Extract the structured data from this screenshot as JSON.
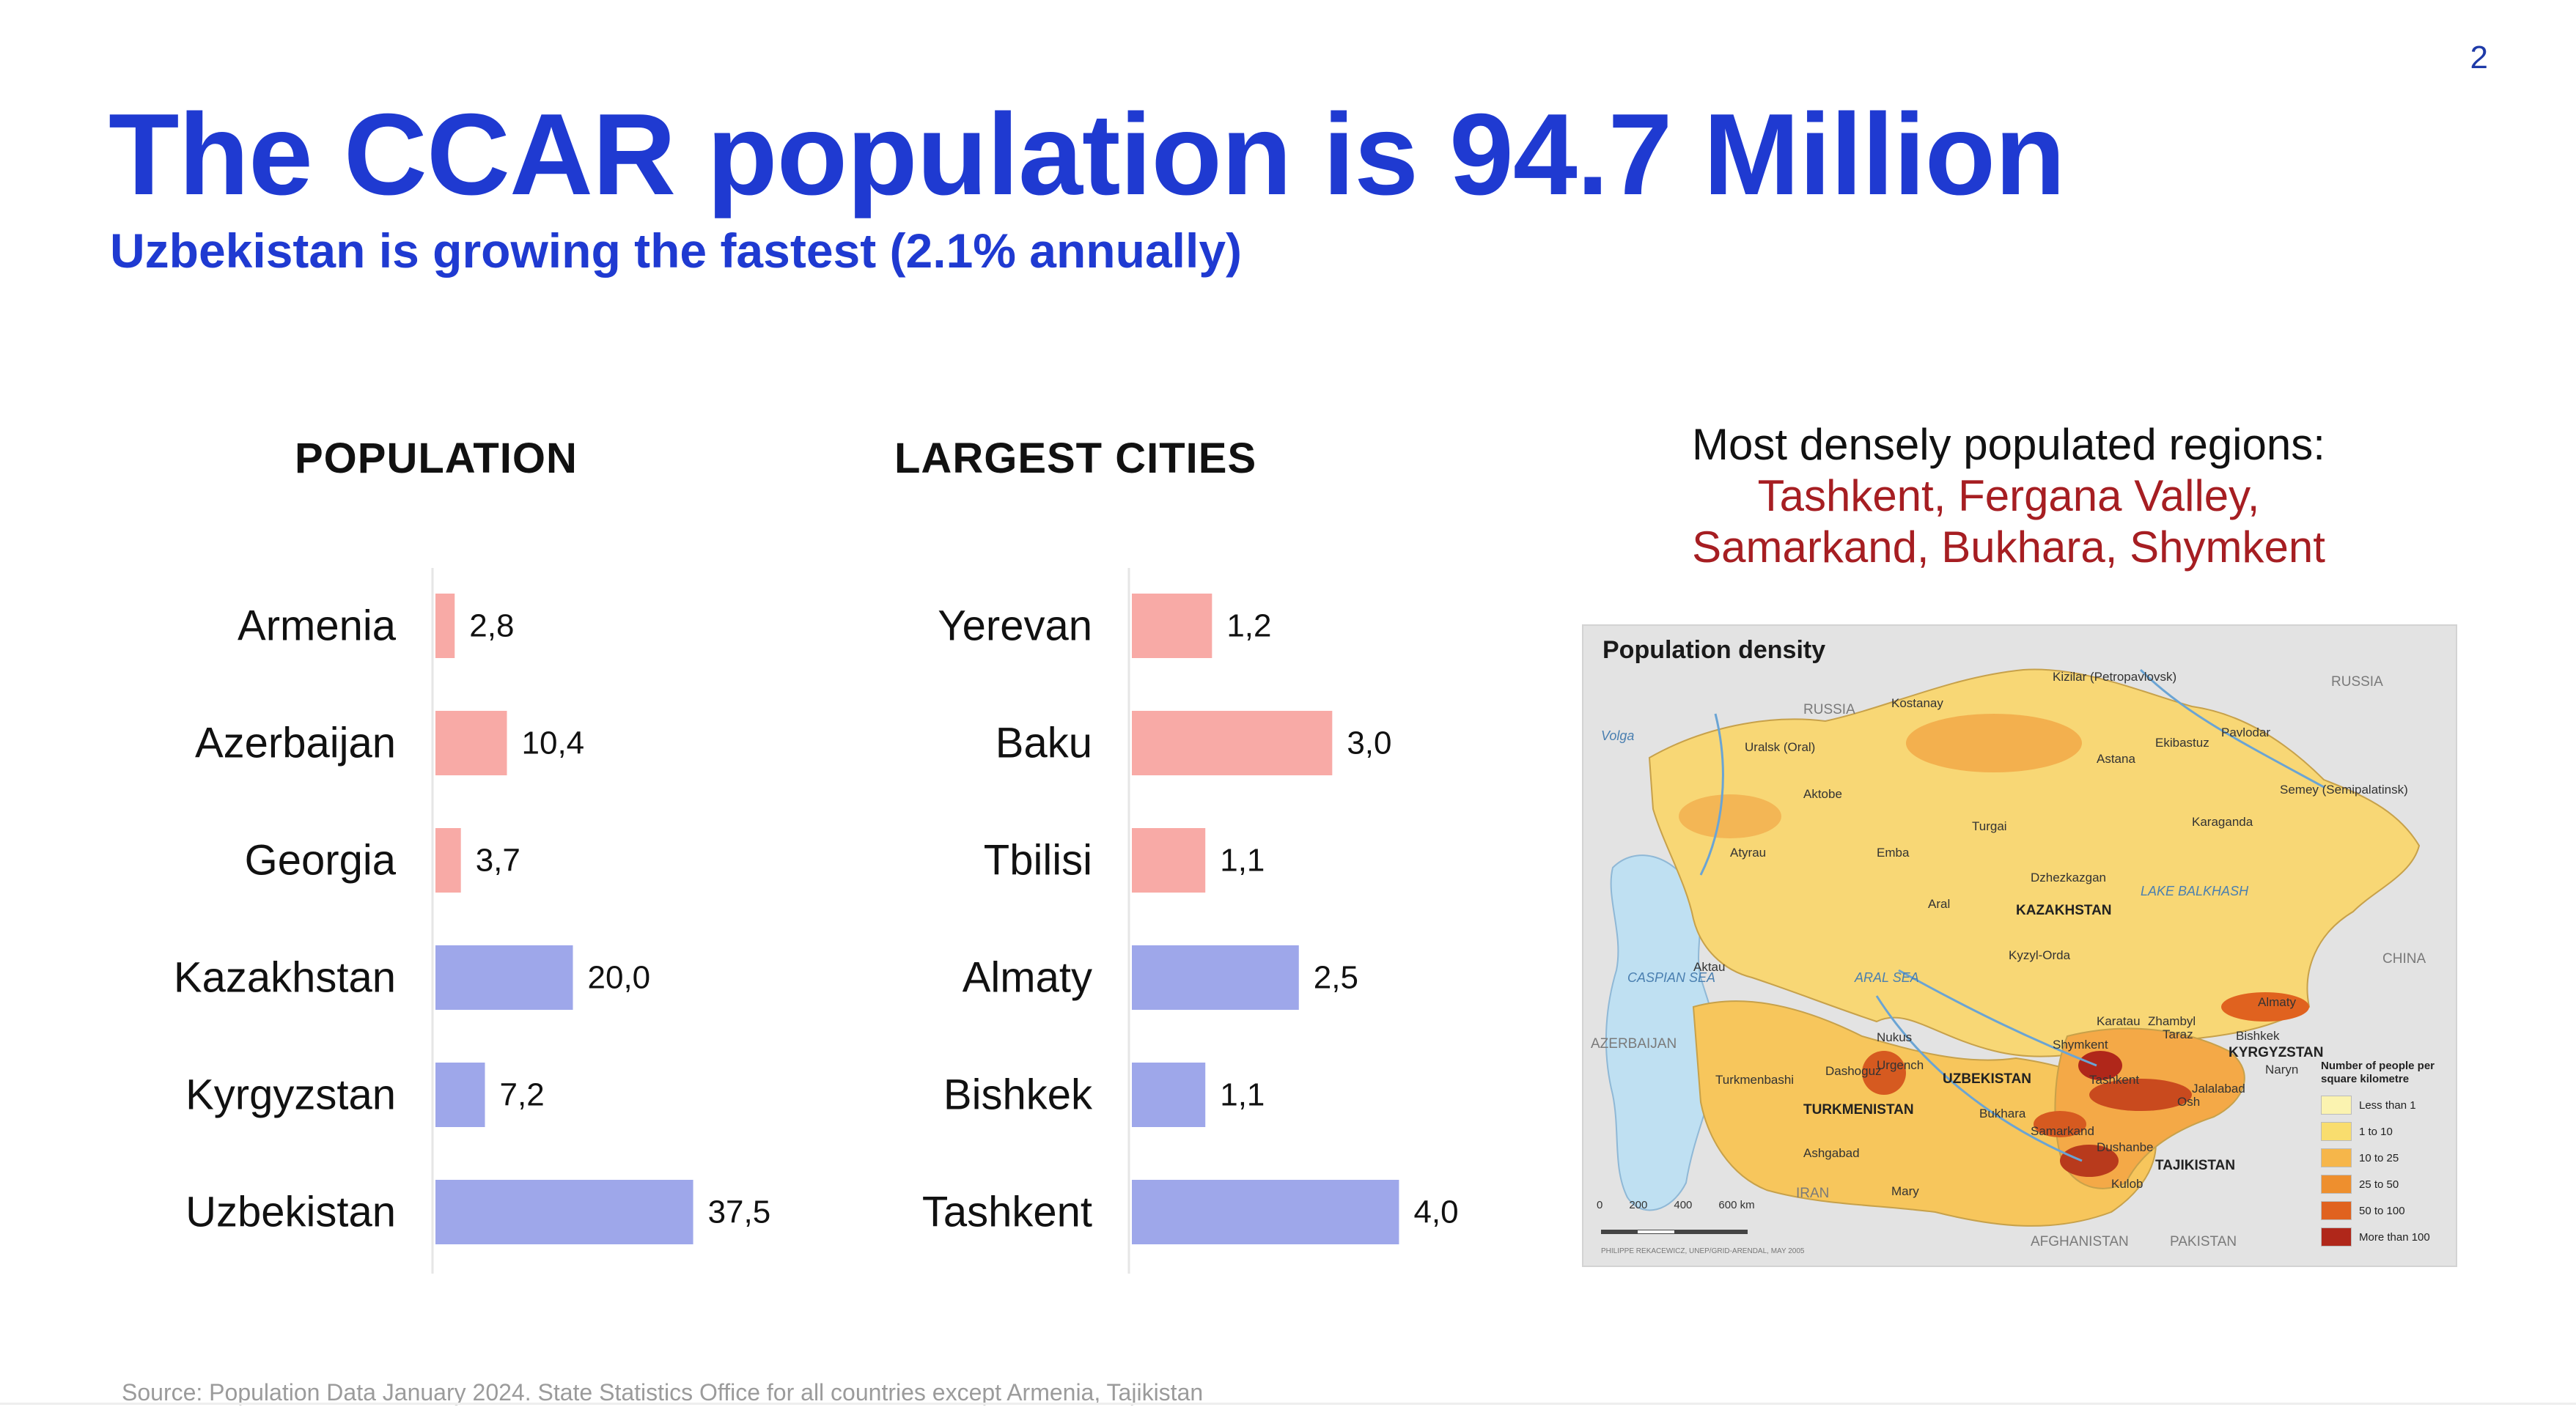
{
  "page_number": "2",
  "title": "The CCAR population is 94.7 Million",
  "subtitle": "Uzbekistan is growing the fastest (2.1% annually)",
  "colors": {
    "title_blue": "#1f3ad1",
    "bar_pink": "#f8aaa6",
    "bar_blue": "#9ea7ea",
    "highlight_red": "#a61e22"
  },
  "chart_data": [
    {
      "type": "bar",
      "orientation": "horizontal",
      "title": "POPULATION",
      "categories": [
        "Armenia",
        "Azerbaijan",
        "Georgia",
        "Kazakhstan",
        "Kyrgyzstan",
        "Uzbekistan"
      ],
      "values": [
        2.8,
        10.4,
        3.7,
        20.0,
        7.2,
        37.5
      ],
      "value_labels": [
        "2,8",
        "10,4",
        "3,7",
        "20,0",
        "7,2",
        "37,5"
      ],
      "bar_colors": [
        "#f8aaa6",
        "#f8aaa6",
        "#f8aaa6",
        "#9ea7ea",
        "#9ea7ea",
        "#9ea7ea"
      ],
      "xlim": [
        0,
        40
      ],
      "grid": false,
      "legend": "none"
    },
    {
      "type": "bar",
      "orientation": "horizontal",
      "title": "LARGEST CITIES",
      "categories": [
        "Yerevan",
        "Baku",
        "Tbilisi",
        "Almaty",
        "Bishkek",
        "Tashkent"
      ],
      "values": [
        1.2,
        3.0,
        1.1,
        2.5,
        1.1,
        4.0
      ],
      "value_labels": [
        "1,2",
        "3,0",
        "1,1",
        "2,5",
        "1,1",
        "4,0"
      ],
      "bar_colors": [
        "#f8aaa6",
        "#f8aaa6",
        "#f8aaa6",
        "#9ea7ea",
        "#9ea7ea",
        "#9ea7ea"
      ],
      "xlim": [
        0,
        4.5
      ],
      "grid": false,
      "legend": "none"
    }
  ],
  "density": {
    "heading": "Most densely populated regions:",
    "regions_line1": "Tashkent, Fergana Valley,",
    "regions_line2": "Samarkand, Bukhara, Shymkent"
  },
  "map": {
    "title": "Population density",
    "countries": [
      "KAZAKHSTAN",
      "UZBEKISTAN",
      "TURKMENISTAN",
      "KYRGYZSTAN",
      "TAJIKISTAN"
    ],
    "neighbors": [
      "RUSSIA",
      "RUSSIA",
      "CHINA",
      "AZERBAIJAN",
      "IRAN",
      "AFGHANISTAN",
      "PAKISTAN"
    ],
    "water": [
      "CASPIAN SEA",
      "ARAL SEA",
      "LAKE BALKHASH",
      "Volga"
    ],
    "cities": [
      "Astana",
      "Almaty",
      "Bishkek",
      "Tashkent",
      "Dushanbe",
      "Ashgabad",
      "Karaganda",
      "Kyzyl-Orda",
      "Aktobe",
      "Atyrau",
      "Aktau",
      "Shymkent",
      "Samarkand",
      "Bukhara",
      "Nukus",
      "Dashoguz",
      "Turkmenbashi",
      "Mary",
      "Osh",
      "Kulob",
      "Urgench",
      "Semey (Semipalatinsk)",
      "Pavlodar",
      "Ekibastuz",
      "Kostanay",
      "Turgai",
      "Emba",
      "Aral",
      "Dzhezkazgan",
      "Karatau",
      "Zhambyl",
      "Taraz",
      "Jalalabad",
      "Naryn",
      "Uralsk (Oral)",
      "Kizilar (Petropavlovsk)"
    ],
    "legend_title": "Number of people per square kilometre",
    "legend": [
      {
        "label": "Less than 1",
        "color": "#fbf3b0"
      },
      {
        "label": "1 to 10",
        "color": "#f9dd6e"
      },
      {
        "label": "10 to 25",
        "color": "#f6b64a"
      },
      {
        "label": "25 to 50",
        "color": "#ee8f2e"
      },
      {
        "label": "50 to 100",
        "color": "#e0621f"
      },
      {
        "label": "More than 100",
        "color": "#b0271a"
      }
    ],
    "scale_ticks": [
      "0",
      "200",
      "400",
      "600 km"
    ],
    "credit": "PHILIPPE REKACEWICZ, UNEP/GRID-ARENDAL, MAY 2005"
  },
  "source": "Source:  Population Data January 2024.  State Statistics Office for all countries except Armenia, Tajikistan"
}
